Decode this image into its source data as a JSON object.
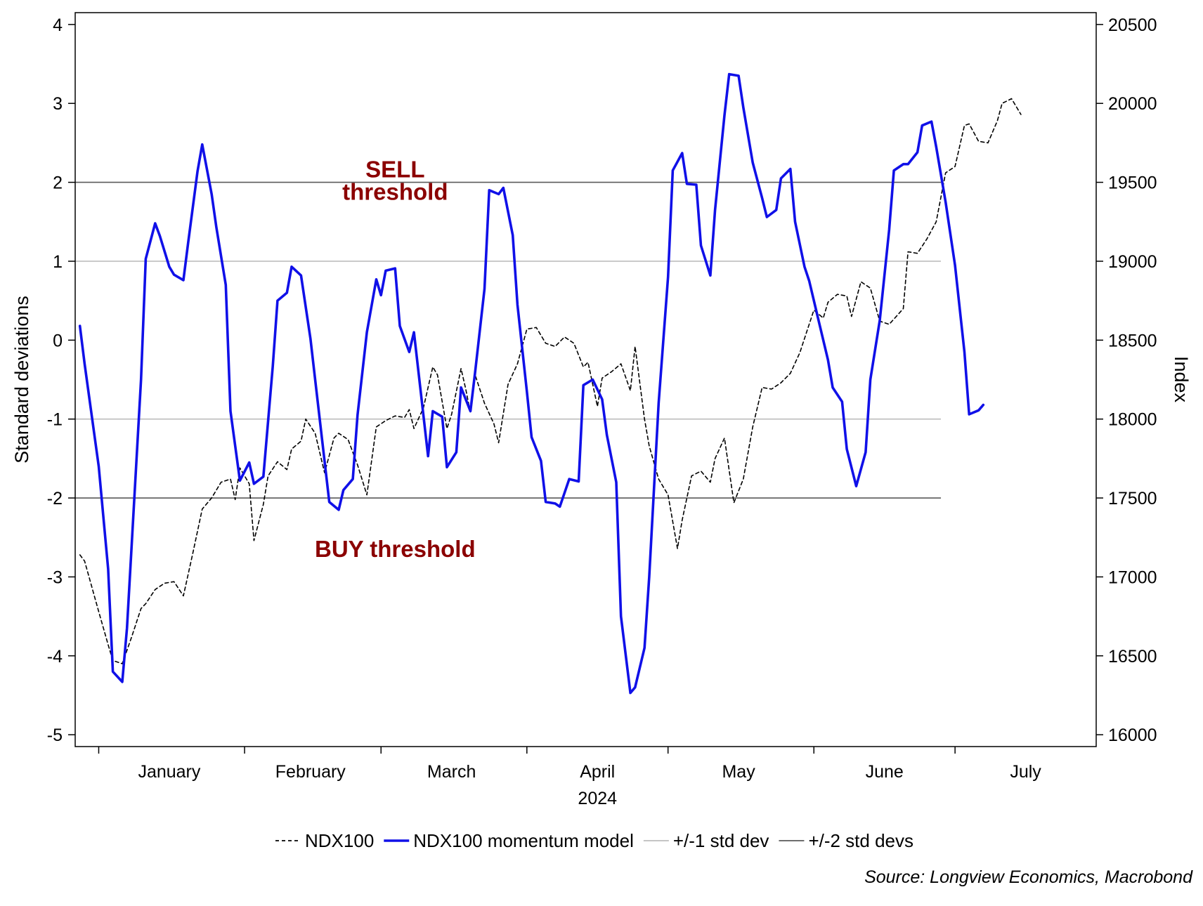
{
  "chart_data": {
    "type": "line",
    "title": "",
    "year_label": "2024",
    "xlabel": "",
    "ylabel_left": "Standard deviations",
    "ylabel_right": "Index",
    "x_range": [
      "2023-12-27",
      "2024-07-31"
    ],
    "ylim_left": [
      -5.15,
      4.15
    ],
    "ylim_right": [
      15925,
      20575
    ],
    "left_ticks": [
      -5,
      -4,
      -3,
      -2,
      -1,
      0,
      1,
      2,
      3,
      4
    ],
    "left_tick_labels": [
      "-5",
      "-4",
      "-3",
      "-2",
      "-1",
      "0",
      "1",
      "2",
      "3",
      "4"
    ],
    "right_ticks": [
      16000,
      16500,
      17000,
      17500,
      18000,
      18500,
      19000,
      19500,
      20000,
      20500
    ],
    "right_tick_labels": [
      "16000",
      "16500",
      "17000",
      "17500",
      "18000",
      "18500",
      "19000",
      "19500",
      "20000",
      "20500"
    ],
    "month_boundaries": [
      "2024-01-01",
      "2024-02-01",
      "2024-03-01",
      "2024-04-01",
      "2024-05-01",
      "2024-06-01",
      "2024-07-01"
    ],
    "months": [
      {
        "label": "January",
        "center": "2024-01-16"
      },
      {
        "label": "February",
        "center": "2024-02-15"
      },
      {
        "label": "March",
        "center": "2024-03-16"
      },
      {
        "label": "April",
        "center": "2024-04-16"
      },
      {
        "label": "May",
        "center": "2024-05-16"
      },
      {
        "label": "June",
        "center": "2024-06-16"
      },
      {
        "label": "July",
        "center": "2024-07-16"
      }
    ],
    "reference_lines": [
      {
        "y": 2,
        "style": "dark",
        "series": "+/-2 std devs"
      },
      {
        "y": 1,
        "style": "light",
        "series": "+/-1 std dev"
      },
      {
        "y": -1,
        "style": "light",
        "series": "+/-1 std dev"
      },
      {
        "y": -2,
        "style": "dark",
        "series": "+/-2 std devs"
      }
    ],
    "ref_x_end": "2024-06-28",
    "annotations": [
      {
        "lines": [
          "SELL",
          "threshold"
        ],
        "x": "2024-03-04",
        "y": 1.85,
        "color": "#8b0000"
      },
      {
        "text": "BUY threshold",
        "x": "2024-03-04",
        "y": -2.65,
        "color": "#8b0000"
      }
    ],
    "series": [
      {
        "name": "NDX100",
        "axis": "right",
        "color": "#000000",
        "style": "dashed",
        "points": [
          [
            "2023-12-28",
            17140
          ],
          [
            "2023-12-29",
            17100
          ],
          [
            "2024-01-01",
            16780
          ],
          [
            "2024-01-03",
            16570
          ],
          [
            "2024-01-04",
            16470
          ],
          [
            "2024-01-06",
            16450
          ],
          [
            "2024-01-08",
            16620
          ],
          [
            "2024-01-10",
            16800
          ],
          [
            "2024-01-11",
            16830
          ],
          [
            "2024-01-13",
            16920
          ],
          [
            "2024-01-15",
            16960
          ],
          [
            "2024-01-17",
            16970
          ],
          [
            "2024-01-19",
            16880
          ],
          [
            "2024-01-21",
            17150
          ],
          [
            "2024-01-23",
            17430
          ],
          [
            "2024-01-25",
            17500
          ],
          [
            "2024-01-27",
            17600
          ],
          [
            "2024-01-29",
            17620
          ],
          [
            "2024-01-30",
            17490
          ],
          [
            "2024-01-31",
            17690
          ],
          [
            "2024-02-02",
            17590
          ],
          [
            "2024-02-03",
            17230
          ],
          [
            "2024-02-05",
            17460
          ],
          [
            "2024-02-06",
            17640
          ],
          [
            "2024-02-08",
            17730
          ],
          [
            "2024-02-10",
            17680
          ],
          [
            "2024-02-11",
            17810
          ],
          [
            "2024-02-13",
            17860
          ],
          [
            "2024-02-14",
            18000
          ],
          [
            "2024-02-16",
            17910
          ],
          [
            "2024-02-18",
            17660
          ],
          [
            "2024-02-20",
            17880
          ],
          [
            "2024-02-21",
            17910
          ],
          [
            "2024-02-23",
            17870
          ],
          [
            "2024-02-25",
            17710
          ],
          [
            "2024-02-27",
            17520
          ],
          [
            "2024-02-29",
            17950
          ],
          [
            "2024-03-02",
            17990
          ],
          [
            "2024-03-04",
            18020
          ],
          [
            "2024-03-06",
            18010
          ],
          [
            "2024-03-07",
            18060
          ],
          [
            "2024-03-08",
            17940
          ],
          [
            "2024-03-10",
            18070
          ],
          [
            "2024-03-12",
            18330
          ],
          [
            "2024-03-13",
            18280
          ],
          [
            "2024-03-15",
            17940
          ],
          [
            "2024-03-16",
            18030
          ],
          [
            "2024-03-18",
            18320
          ],
          [
            "2024-03-19",
            18190
          ],
          [
            "2024-03-20",
            18040
          ],
          [
            "2024-03-21",
            18280
          ],
          [
            "2024-03-23",
            18100
          ],
          [
            "2024-03-25",
            17970
          ],
          [
            "2024-03-26",
            17850
          ],
          [
            "2024-03-28",
            18220
          ],
          [
            "2024-03-30",
            18350
          ],
          [
            "2024-04-01",
            18570
          ],
          [
            "2024-04-03",
            18580
          ],
          [
            "2024-04-05",
            18480
          ],
          [
            "2024-04-07",
            18460
          ],
          [
            "2024-04-09",
            18520
          ],
          [
            "2024-04-11",
            18480
          ],
          [
            "2024-04-13",
            18330
          ],
          [
            "2024-04-14",
            18360
          ],
          [
            "2024-04-16",
            18080
          ],
          [
            "2024-04-17",
            18260
          ],
          [
            "2024-04-19",
            18300
          ],
          [
            "2024-04-21",
            18350
          ],
          [
            "2024-04-23",
            18180
          ],
          [
            "2024-04-24",
            18460
          ],
          [
            "2024-04-26",
            18000
          ],
          [
            "2024-04-27",
            17830
          ],
          [
            "2024-04-29",
            17620
          ],
          [
            "2024-05-01",
            17520
          ],
          [
            "2024-05-03",
            17180
          ],
          [
            "2024-05-04",
            17360
          ],
          [
            "2024-05-06",
            17640
          ],
          [
            "2024-05-08",
            17670
          ],
          [
            "2024-05-10",
            17600
          ],
          [
            "2024-05-11",
            17750
          ],
          [
            "2024-05-13",
            17880
          ],
          [
            "2024-05-15",
            17470
          ],
          [
            "2024-05-17",
            17620
          ],
          [
            "2024-05-19",
            17950
          ],
          [
            "2024-05-21",
            18200
          ],
          [
            "2024-05-23",
            18190
          ],
          [
            "2024-05-25",
            18230
          ],
          [
            "2024-05-27",
            18290
          ],
          [
            "2024-05-29",
            18420
          ],
          [
            "2024-06-01",
            18690
          ],
          [
            "2024-06-03",
            18640
          ],
          [
            "2024-06-04",
            18740
          ],
          [
            "2024-06-06",
            18790
          ],
          [
            "2024-06-08",
            18780
          ],
          [
            "2024-06-09",
            18650
          ],
          [
            "2024-06-11",
            18870
          ],
          [
            "2024-06-13",
            18830
          ],
          [
            "2024-06-15",
            18620
          ],
          [
            "2024-06-17",
            18600
          ],
          [
            "2024-06-20",
            18700
          ],
          [
            "2024-06-21",
            19060
          ],
          [
            "2024-06-23",
            19050
          ],
          [
            "2024-06-25",
            19140
          ],
          [
            "2024-06-27",
            19250
          ],
          [
            "2024-06-29",
            19560
          ],
          [
            "2024-07-01",
            19600
          ],
          [
            "2024-07-03",
            19860
          ],
          [
            "2024-07-04",
            19870
          ],
          [
            "2024-07-06",
            19760
          ],
          [
            "2024-07-08",
            19750
          ],
          [
            "2024-07-10",
            19890
          ],
          [
            "2024-07-11",
            20000
          ],
          [
            "2024-07-13",
            20030
          ],
          [
            "2024-07-15",
            19930
          ]
        ]
      },
      {
        "name": "NDX100 momentum model",
        "axis": "left",
        "color": "#1010e8",
        "style": "solid",
        "points": [
          [
            "2023-12-28",
            0.18
          ],
          [
            "2023-12-29",
            -0.3
          ],
          [
            "2024-01-01",
            -1.6
          ],
          [
            "2024-01-03",
            -2.9
          ],
          [
            "2024-01-04",
            -4.2
          ],
          [
            "2024-01-06",
            -4.33
          ],
          [
            "2024-01-07",
            -3.65
          ],
          [
            "2024-01-10",
            -0.5
          ],
          [
            "2024-01-11",
            1.03
          ],
          [
            "2024-01-13",
            1.48
          ],
          [
            "2024-01-14",
            1.32
          ],
          [
            "2024-01-16",
            0.93
          ],
          [
            "2024-01-17",
            0.83
          ],
          [
            "2024-01-19",
            0.76
          ],
          [
            "2024-01-20",
            1.23
          ],
          [
            "2024-01-22",
            2.14
          ],
          [
            "2024-01-23",
            2.48
          ],
          [
            "2024-01-25",
            1.85
          ],
          [
            "2024-01-26",
            1.43
          ],
          [
            "2024-01-28",
            0.7
          ],
          [
            "2024-01-29",
            -0.9
          ],
          [
            "2024-01-31",
            -1.78
          ],
          [
            "2024-02-02",
            -1.55
          ],
          [
            "2024-02-03",
            -1.82
          ],
          [
            "2024-02-05",
            -1.73
          ],
          [
            "2024-02-07",
            -0.33
          ],
          [
            "2024-02-08",
            0.5
          ],
          [
            "2024-02-10",
            0.6
          ],
          [
            "2024-02-11",
            0.93
          ],
          [
            "2024-02-13",
            0.82
          ],
          [
            "2024-02-15",
            0.02
          ],
          [
            "2024-02-16",
            -0.5
          ],
          [
            "2024-02-19",
            -2.05
          ],
          [
            "2024-02-21",
            -2.15
          ],
          [
            "2024-02-22",
            -1.9
          ],
          [
            "2024-02-24",
            -1.76
          ],
          [
            "2024-02-25",
            -0.95
          ],
          [
            "2024-02-27",
            0.1
          ],
          [
            "2024-02-29",
            0.77
          ],
          [
            "2024-03-01",
            0.57
          ],
          [
            "2024-03-02",
            0.88
          ],
          [
            "2024-03-04",
            0.91
          ],
          [
            "2024-03-05",
            0.18
          ],
          [
            "2024-03-07",
            -0.15
          ],
          [
            "2024-03-08",
            0.1
          ],
          [
            "2024-03-11",
            -1.47
          ],
          [
            "2024-03-12",
            -0.9
          ],
          [
            "2024-03-14",
            -0.97
          ],
          [
            "2024-03-15",
            -1.61
          ],
          [
            "2024-03-17",
            -1.42
          ],
          [
            "2024-03-18",
            -0.6
          ],
          [
            "2024-03-20",
            -0.9
          ],
          [
            "2024-03-21",
            -0.41
          ],
          [
            "2024-03-23",
            0.65
          ],
          [
            "2024-03-24",
            1.9
          ],
          [
            "2024-03-26",
            1.85
          ],
          [
            "2024-03-27",
            1.93
          ],
          [
            "2024-03-29",
            1.33
          ],
          [
            "2024-03-30",
            0.45
          ],
          [
            "2024-04-01",
            -0.65
          ],
          [
            "2024-04-02",
            -1.23
          ],
          [
            "2024-04-04",
            -1.53
          ],
          [
            "2024-04-05",
            -2.05
          ],
          [
            "2024-04-07",
            -2.07
          ],
          [
            "2024-04-08",
            -2.11
          ],
          [
            "2024-04-10",
            -1.76
          ],
          [
            "2024-04-12",
            -1.79
          ],
          [
            "2024-04-13",
            -0.57
          ],
          [
            "2024-04-15",
            -0.5
          ],
          [
            "2024-04-17",
            -0.75
          ],
          [
            "2024-04-18",
            -1.2
          ],
          [
            "2024-04-20",
            -1.8
          ],
          [
            "2024-04-21",
            -3.5
          ],
          [
            "2024-04-23",
            -4.47
          ],
          [
            "2024-04-24",
            -4.4
          ],
          [
            "2024-04-26",
            -3.9
          ],
          [
            "2024-04-27",
            -3.0
          ],
          [
            "2024-04-29",
            -0.8
          ],
          [
            "2024-05-01",
            0.8
          ],
          [
            "2024-05-02",
            2.15
          ],
          [
            "2024-05-04",
            2.37
          ],
          [
            "2024-05-05",
            1.98
          ],
          [
            "2024-05-07",
            1.97
          ],
          [
            "2024-05-08",
            1.2
          ],
          [
            "2024-05-10",
            0.82
          ],
          [
            "2024-05-11",
            1.65
          ],
          [
            "2024-05-13",
            2.85
          ],
          [
            "2024-05-14",
            3.37
          ],
          [
            "2024-05-16",
            3.35
          ],
          [
            "2024-05-17",
            2.95
          ],
          [
            "2024-05-19",
            2.25
          ],
          [
            "2024-05-21",
            1.8
          ],
          [
            "2024-05-22",
            1.56
          ],
          [
            "2024-05-24",
            1.65
          ],
          [
            "2024-05-25",
            2.05
          ],
          [
            "2024-05-27",
            2.17
          ],
          [
            "2024-05-28",
            1.5
          ],
          [
            "2024-05-30",
            0.93
          ],
          [
            "2024-05-31",
            0.75
          ],
          [
            "2024-06-02",
            0.25
          ],
          [
            "2024-06-04",
            -0.25
          ],
          [
            "2024-06-05",
            -0.6
          ],
          [
            "2024-06-07",
            -0.78
          ],
          [
            "2024-06-08",
            -1.38
          ],
          [
            "2024-06-10",
            -1.85
          ],
          [
            "2024-06-12",
            -1.42
          ],
          [
            "2024-06-13",
            -0.5
          ],
          [
            "2024-06-15",
            0.25
          ],
          [
            "2024-06-17",
            1.4
          ],
          [
            "2024-06-18",
            2.15
          ],
          [
            "2024-06-20",
            2.23
          ],
          [
            "2024-06-21",
            2.23
          ],
          [
            "2024-06-23",
            2.38
          ],
          [
            "2024-06-24",
            2.72
          ],
          [
            "2024-06-26",
            2.77
          ],
          [
            "2024-06-27",
            2.45
          ],
          [
            "2024-06-29",
            1.75
          ],
          [
            "2024-07-01",
            0.95
          ],
          [
            "2024-07-03",
            -0.15
          ],
          [
            "2024-07-04",
            -0.94
          ],
          [
            "2024-07-06",
            -0.89
          ],
          [
            "2024-07-07",
            -0.82
          ]
        ]
      }
    ],
    "legend": {
      "position": "bottom",
      "entries": [
        {
          "label": "NDX100",
          "style": "dashed",
          "color": "#000000"
        },
        {
          "label": "NDX100 momentum model",
          "style": "solid-thick",
          "color": "#1010e8"
        },
        {
          "label": "+/-1 std dev",
          "style": "solid-light",
          "color": "#bdbdbd"
        },
        {
          "label": "+/-2 std devs",
          "style": "solid-dark",
          "color": "#5a5a5a"
        }
      ]
    },
    "source": "Source: Longview Economics, Macrobond",
    "grid": false
  },
  "colors": {
    "frame": "#000000",
    "ref_light": "#bdbdbd",
    "ref_dark": "#5a5a5a",
    "annotation": "#8b0000",
    "momentum": "#1010e8",
    "index": "#000000"
  }
}
